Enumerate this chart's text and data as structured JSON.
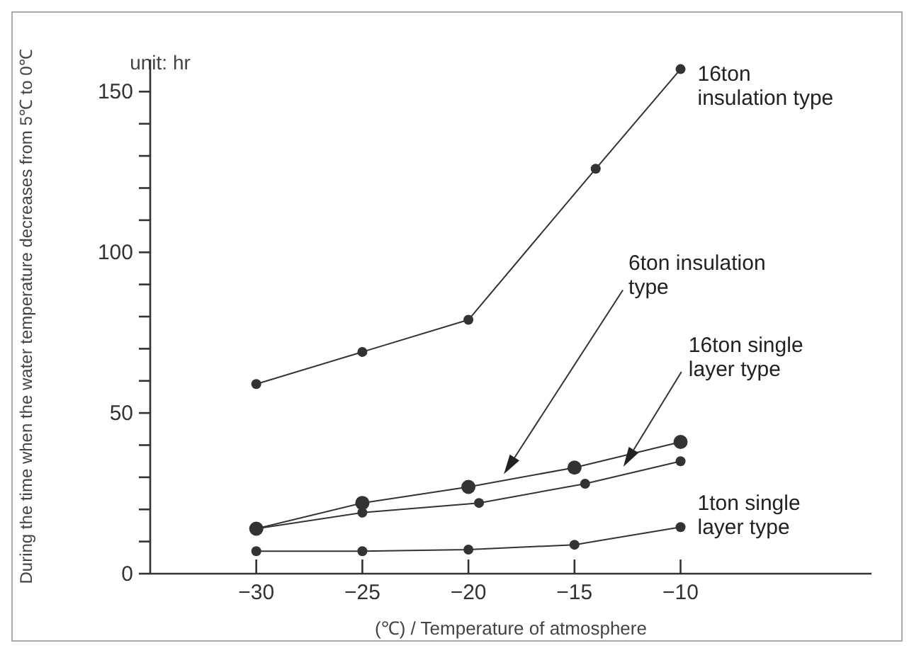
{
  "chart_data": {
    "type": "line",
    "xlabel": "(℃) / Temperature of atmosphere",
    "ylabel": "During the time when the water temperature decreases from 5℃ to 0℃",
    "annotations": [
      "unit: hr"
    ],
    "xlim": [
      -35,
      -1
    ],
    "xticks": [
      -30,
      -25,
      -20,
      -15,
      -10
    ],
    "ylim": [
      0,
      160
    ],
    "yticks": [
      {
        "value": 0,
        "label": "0"
      },
      {
        "value": 10,
        "label": null
      },
      {
        "value": 20,
        "label": null
      },
      {
        "value": 30,
        "label": null
      },
      {
        "value": 40,
        "label": null
      },
      50,
      {
        "value": 60,
        "label": null
      },
      {
        "value": 70,
        "label": null
      },
      {
        "value": 80,
        "label": null
      },
      {
        "value": 90,
        "label": null
      },
      100,
      {
        "value": 110,
        "label": null
      },
      {
        "value": 120,
        "label": null
      },
      {
        "value": 130,
        "label": null
      },
      {
        "value": 140,
        "label": null
      },
      150
    ],
    "grid": false,
    "legend": false,
    "marker": "circle",
    "line_style": "solid",
    "series": [
      {
        "name": "16ton insulation type",
        "color": "#333333",
        "x": [
          -30,
          -25,
          -20,
          -14,
          -10
        ],
        "values": [
          59,
          69,
          79,
          126,
          157
        ]
      },
      {
        "name": "6ton insulation type",
        "color": "#333333",
        "x": [
          -30,
          -25,
          -20,
          -15,
          -10
        ],
        "values": [
          14,
          22,
          27,
          33,
          41
        ]
      },
      {
        "name": "16ton single layer type",
        "color": "#333333",
        "x": [
          -30,
          -25,
          -19.5,
          -14.5,
          -10
        ],
        "values": [
          14,
          19,
          22,
          28,
          35
        ]
      },
      {
        "name": "1ton single layer type",
        "color": "#333333",
        "x": [
          -30,
          -25,
          -20,
          -15,
          -10
        ],
        "values": [
          7,
          7,
          7.5,
          9,
          14.5
        ]
      }
    ]
  }
}
